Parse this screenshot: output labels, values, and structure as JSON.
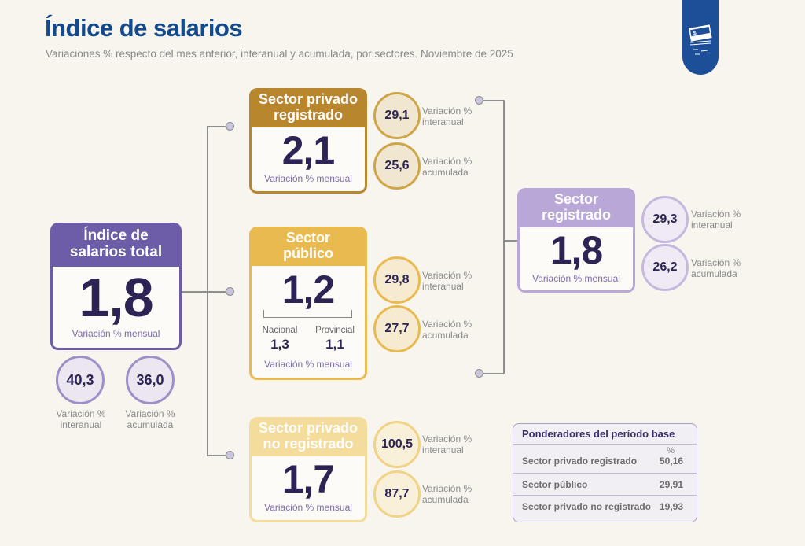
{
  "header": {
    "title": "Índice de salarios",
    "subtitle": "Variaciones % respecto del mes anterior, interanual y acumulada, por sectores. Noviembre de 2025",
    "logo_icon": "money-stack-icon",
    "logo_text": "$"
  },
  "colors": {
    "title": "#134a8e",
    "purple": "#6d5ca8",
    "dark_gold": "#b8862c",
    "gold": "#e9ba4f",
    "pale_gold": "#f4dd9c",
    "lavender": "#b9a7d7",
    "number": "#2d2455"
  },
  "total": {
    "title": "Índice de salarios total",
    "monthly": "1,8",
    "monthly_label": "Variación % mensual",
    "interanual": "40,3",
    "interanual_label": "Variación % interanual",
    "acumulada": "36,0",
    "acumulada_label": "Variación % acumulada"
  },
  "privado_registrado": {
    "title": "Sector privado registrado",
    "monthly": "2,1",
    "monthly_label": "Variación % mensual",
    "interanual": "29,1",
    "interanual_label": "Variación % interanual",
    "acumulada": "25,6",
    "acumulada_label": "Variación % acumulada"
  },
  "publico": {
    "title": "Sector público",
    "monthly": "1,2",
    "nacional_label": "Nacional",
    "nacional": "1,3",
    "provincial_label": "Provincial",
    "provincial": "1,1",
    "monthly_label": "Variación % mensual",
    "interanual": "29,8",
    "interanual_label": "Variación % interanual",
    "acumulada": "27,7",
    "acumulada_label": "Variación % acumulada"
  },
  "no_registrado": {
    "title": "Sector privado no registrado",
    "monthly": "1,7",
    "monthly_label": "Variación % mensual",
    "interanual": "100,5",
    "interanual_label": "Variación % interanual",
    "acumulada": "87,7",
    "acumulada_label": "Variación % acumulada"
  },
  "registrado": {
    "title": "Sector registrado",
    "monthly": "1,8",
    "monthly_label": "Variación % mensual",
    "interanual": "29,3",
    "interanual_label": "Variación % interanual",
    "acumulada": "26,2",
    "acumulada_label": "Variación % acumulada"
  },
  "ponderadores": {
    "title": "Ponderadores del período base",
    "unit": "%",
    "rows": [
      {
        "label": "Sector privado registrado",
        "value": "50,16"
      },
      {
        "label": "Sector público",
        "value": "29,91"
      },
      {
        "label": "Sector privado no registrado",
        "value": "19,93"
      }
    ]
  }
}
